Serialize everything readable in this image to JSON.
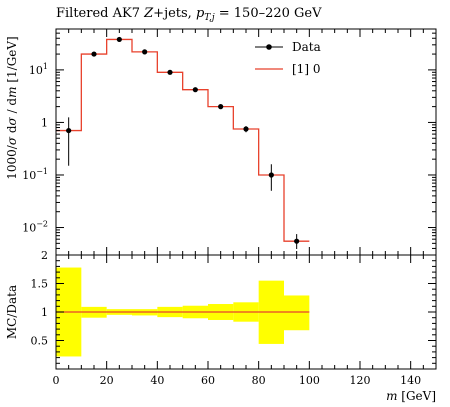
{
  "chart_data": [
    {
      "type": "step",
      "title": "Filtered AK7 Z+jets, p_T,j = 150–220 GeV",
      "title_parts": {
        "main": "Filtered AK7 ",
        "italic_Z": "Z",
        "rest": "+jets, ",
        "p": "p",
        "sub": "T,j",
        "eq": " = 150–220 GeV"
      },
      "ylabel": "1000/σ dσ/dm [1/GeV]",
      "ylabel_parts": {
        "pre": "1000/",
        "sigma": "σ",
        "d1": " d",
        "sigma2": "σ",
        "slash": " / d",
        "m": "m",
        "unit": " [1/GeV]"
      },
      "xlim": [
        0,
        150
      ],
      "ylim": [
        0.003,
        60
      ],
      "yscale": "log",
      "bin_edges": [
        0,
        10,
        20,
        30,
        40,
        50,
        60,
        70,
        80,
        90,
        100
      ],
      "series": [
        {
          "name": "Data",
          "kind": "points",
          "color": "#000000",
          "x": [
            5,
            15,
            25,
            35,
            45,
            55,
            65,
            75,
            85,
            95
          ],
          "y": [
            0.7,
            20,
            38,
            22,
            9,
            4.2,
            2.0,
            0.75,
            0.1,
            0.0055
          ],
          "err_lo": [
            0.55,
            0.6,
            0.8,
            0.6,
            0.35,
            0.2,
            0.12,
            0.1,
            0.05,
            0.0016
          ],
          "err_hi": [
            0.55,
            0.6,
            0.8,
            0.6,
            0.35,
            0.2,
            0.12,
            0.1,
            0.06,
            0.002
          ]
        },
        {
          "name": "[1] 0",
          "kind": "histogram",
          "color": "#e8412c",
          "values": [
            0.7,
            20,
            38,
            22,
            9,
            4.2,
            2.0,
            0.75,
            0.1,
            0.0055
          ]
        }
      ],
      "legend": "top-right",
      "yticks": [
        {
          "value": 0.01,
          "base": "10",
          "exp": "−2"
        },
        {
          "value": 0.1,
          "base": "10",
          "exp": "−1"
        },
        {
          "value": 1,
          "base": "1",
          "exp": ""
        },
        {
          "value": 10,
          "base": "10",
          "exp": "1"
        }
      ]
    },
    {
      "type": "ratio-band",
      "ylabel": "MC/Data",
      "xlabel": "m [GeV]",
      "xlabel_parts": {
        "m": "m",
        "unit": " [GeV]"
      },
      "xlim": [
        0,
        150
      ],
      "ylim": [
        0,
        2
      ],
      "bin_edges": [
        0,
        10,
        20,
        30,
        40,
        50,
        60,
        70,
        80,
        90,
        100
      ],
      "band_color": "#ffff00",
      "line_color": "#e8412c",
      "band_lo": [
        0.22,
        0.9,
        0.95,
        0.94,
        0.91,
        0.89,
        0.86,
        0.83,
        0.44,
        0.68
      ],
      "band_hi": [
        1.78,
        1.09,
        1.05,
        1.05,
        1.09,
        1.11,
        1.14,
        1.17,
        1.55,
        1.29
      ],
      "ratio": [
        1,
        1,
        1,
        1,
        1,
        1,
        1,
        1,
        1,
        1
      ],
      "yticks": [
        "0.5",
        "1",
        "1.5",
        "2"
      ],
      "xticks": [
        "0",
        "20",
        "40",
        "60",
        "80",
        "100",
        "120",
        "140"
      ]
    }
  ]
}
